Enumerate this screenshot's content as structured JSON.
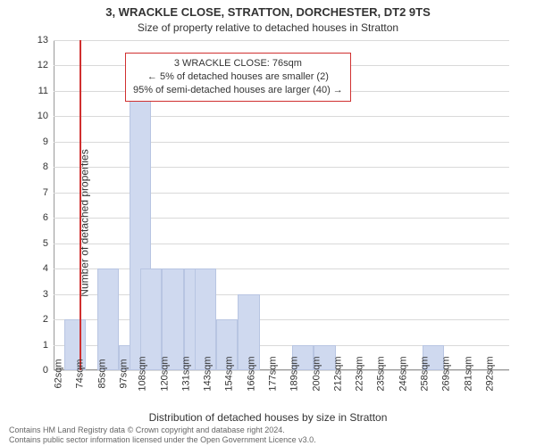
{
  "title_main": "3, WRACKLE CLOSE, STRATTON, DORCHESTER, DT2 9TS",
  "title_sub": "Size of property relative to detached houses in Stratton",
  "y_axis_label": "Number of detached properties",
  "x_axis_label": "Distribution of detached houses by size in Stratton",
  "chart": {
    "type": "histogram",
    "bar_color": "#cfd9ef",
    "bar_border": "#b8c5e2",
    "grid_color": "#d9d9d9",
    "axis_color": "#999999",
    "background_color": "#ffffff",
    "ylim": [
      0,
      13
    ],
    "yticks": [
      0,
      1,
      2,
      3,
      4,
      5,
      6,
      7,
      8,
      9,
      10,
      11,
      12,
      13
    ],
    "xticks": [
      "62sqm",
      "74sqm",
      "85sqm",
      "97sqm",
      "108sqm",
      "120sqm",
      "131sqm",
      "143sqm",
      "154sqm",
      "166sqm",
      "177sqm",
      "189sqm",
      "200sqm",
      "212sqm",
      "223sqm",
      "235sqm",
      "246sqm",
      "258sqm",
      "269sqm",
      "281sqm",
      "292sqm"
    ],
    "bars": [
      {
        "x_index": 0.5,
        "w": 1,
        "h": 2
      },
      {
        "x_index": 2,
        "w": 1,
        "h": 4
      },
      {
        "x_index": 3,
        "w": 1,
        "h": 1
      },
      {
        "x_index": 3.5,
        "w": 1,
        "h": 11
      },
      {
        "x_index": 4.0,
        "w": 1,
        "h": 4
      },
      {
        "x_index": 5,
        "w": 1,
        "h": 4
      },
      {
        "x_index": 6,
        "w": 1,
        "h": 4
      },
      {
        "x_index": 6.5,
        "w": 1,
        "h": 4
      },
      {
        "x_index": 7.5,
        "w": 1,
        "h": 2
      },
      {
        "x_index": 8.5,
        "w": 1,
        "h": 3
      },
      {
        "x_index": 11.0,
        "w": 1,
        "h": 1
      },
      {
        "x_index": 12.0,
        "w": 1,
        "h": 1
      },
      {
        "x_index": 17.0,
        "w": 1,
        "h": 1
      }
    ],
    "ref_line": {
      "x_index": 1.2,
      "color": "#d03030"
    }
  },
  "callout": {
    "lines": [
      "3 WRACKLE CLOSE: 76sqm",
      "← 5% of detached houses are smaller (2)",
      "95% of semi-detached houses are larger (40) →"
    ],
    "border_color": "#d03030"
  },
  "attribution": {
    "line1": "Contains HM Land Registry data © Crown copyright and database right 2024.",
    "line2": "Contains public sector information licensed under the Open Government Licence v3.0."
  }
}
